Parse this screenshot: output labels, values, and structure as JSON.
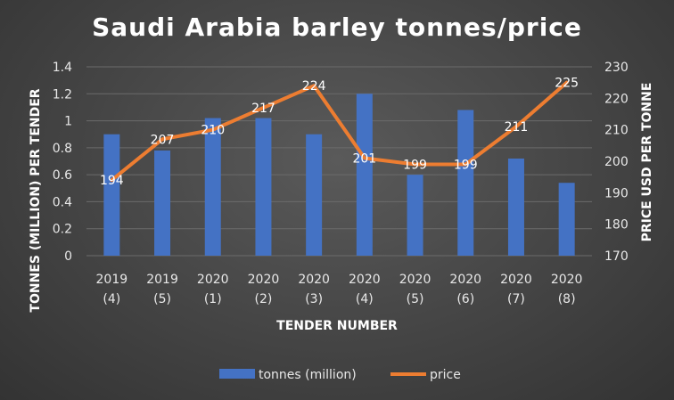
{
  "colors": {
    "bar": "#4472c4",
    "line": "#ed7d31",
    "grid": "#6b6b6b",
    "text": "#ffffff"
  },
  "chart_data": {
    "type": "bar",
    "title": "Saudi Arabia barley tonnes/price",
    "xlabel": "TENDER NUMBER",
    "ylabel_left": "TONNES (MILLION) PER TENDER",
    "ylabel_right": "PRICE USD PER TONNE",
    "categories": [
      [
        "2019",
        "(4)"
      ],
      [
        "2019",
        "(5)"
      ],
      [
        "2020",
        "(1)"
      ],
      [
        "2020",
        "(2)"
      ],
      [
        "2020",
        "(3)"
      ],
      [
        "2020",
        "(4)"
      ],
      [
        "2020",
        "(5)"
      ],
      [
        "2020",
        "(6)"
      ],
      [
        "2020",
        "(7)"
      ],
      [
        "2020",
        "(8)"
      ]
    ],
    "ylim_left": [
      0,
      1.4
    ],
    "yticks_left": [
      "0",
      "0.2",
      "0.4",
      "0.6",
      "0.8",
      "1",
      "1.2",
      "1.4"
    ],
    "ylim_right": [
      170,
      230
    ],
    "yticks_right": [
      "170",
      "180",
      "190",
      "200",
      "210",
      "220",
      "230"
    ],
    "grid": true,
    "legend_position": "bottom",
    "series": [
      {
        "name": "tonnes (million)",
        "type": "bar",
        "axis": "left",
        "values": [
          0.9,
          0.78,
          1.02,
          1.02,
          0.9,
          1.2,
          0.6,
          1.08,
          0.72,
          0.54
        ]
      },
      {
        "name": "price",
        "type": "line",
        "axis": "right",
        "values": [
          194,
          207,
          210,
          217,
          224,
          201,
          199,
          199,
          211,
          225
        ],
        "labels": [
          "194",
          "207",
          "210",
          "217",
          "224",
          "201",
          "199",
          "199",
          "211",
          "225"
        ]
      }
    ]
  }
}
